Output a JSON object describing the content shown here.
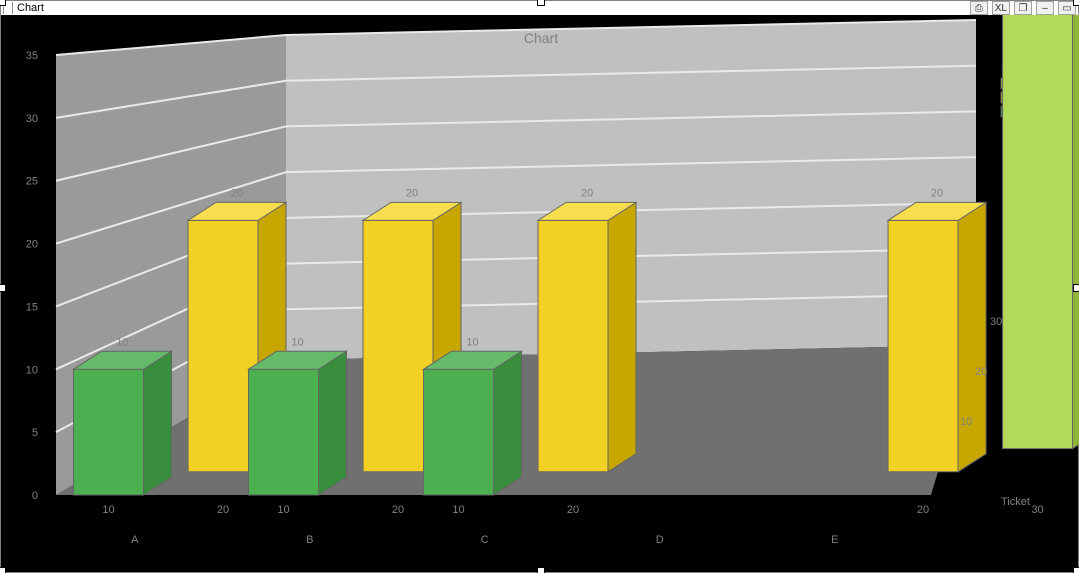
{
  "window": {
    "title": "Chart",
    "controls": {
      "print_icon": "⎙",
      "xl": "XL",
      "restore_icon": "❐",
      "minimize_icon": "–",
      "maximize_icon": "▭"
    }
  },
  "chart": {
    "type": "bar-3d",
    "title": "Chart",
    "title_color": "#808080",
    "title_fontsize": 14,
    "background_color": "#000000",
    "wall_back_color": "#c0c0c0",
    "wall_side_color": "#9a9a9a",
    "floor_color": "#707070",
    "gridline_color": "#eaeaea",
    "bar_outline_color": "#666666",
    "categories": [
      "A",
      "B",
      "C",
      "D",
      "E"
    ],
    "axis_label_x_secondary": "Ticket",
    "subcategory_labels": [
      "10",
      "20",
      "30"
    ],
    "z_axis_labels": [
      "10",
      "20",
      "30"
    ],
    "y_axis": {
      "min": 0,
      "max": 35,
      "tick_step": 5,
      "tick_color": "#808080",
      "tick_fontsize": 11
    },
    "legend": {
      "title": "DaysOpen",
      "title_color": "#808080",
      "title_fontsize": 11,
      "background_color": "#000000",
      "items": [
        {
          "label": "30",
          "color": "#b2d95a"
        },
        {
          "label": "20",
          "color": "#e8cf28"
        },
        {
          "label": "10",
          "color": "#3fa13f"
        }
      ]
    },
    "series": [
      {
        "name": "DaysOpen 10",
        "z_index": 0,
        "color_front": "#4caf50",
        "color_top": "#66bb6a",
        "color_side": "#388e3c",
        "values": {
          "A": 10,
          "B": 10,
          "C": 10,
          "D": null,
          "E": null
        }
      },
      {
        "name": "DaysOpen 20",
        "z_index": 1,
        "color_front": "#f2d024",
        "color_top": "#f8de4f",
        "color_side": "#c7a600",
        "values": {
          "A": 20,
          "B": 20,
          "C": 20,
          "D": null,
          "E": 20
        }
      },
      {
        "name": "DaysOpen 30",
        "z_index": 2,
        "color_front": "#b2d95a",
        "color_top": "#c6e479",
        "color_side": "#8fb53a",
        "values": {
          "A": null,
          "B": null,
          "C": null,
          "D": null,
          "E": 45
        }
      }
    ],
    "data_label_fontsize": 11,
    "data_label_color": "#808080",
    "category_label_color": "#808080",
    "category_label_fontsize": 11
  }
}
